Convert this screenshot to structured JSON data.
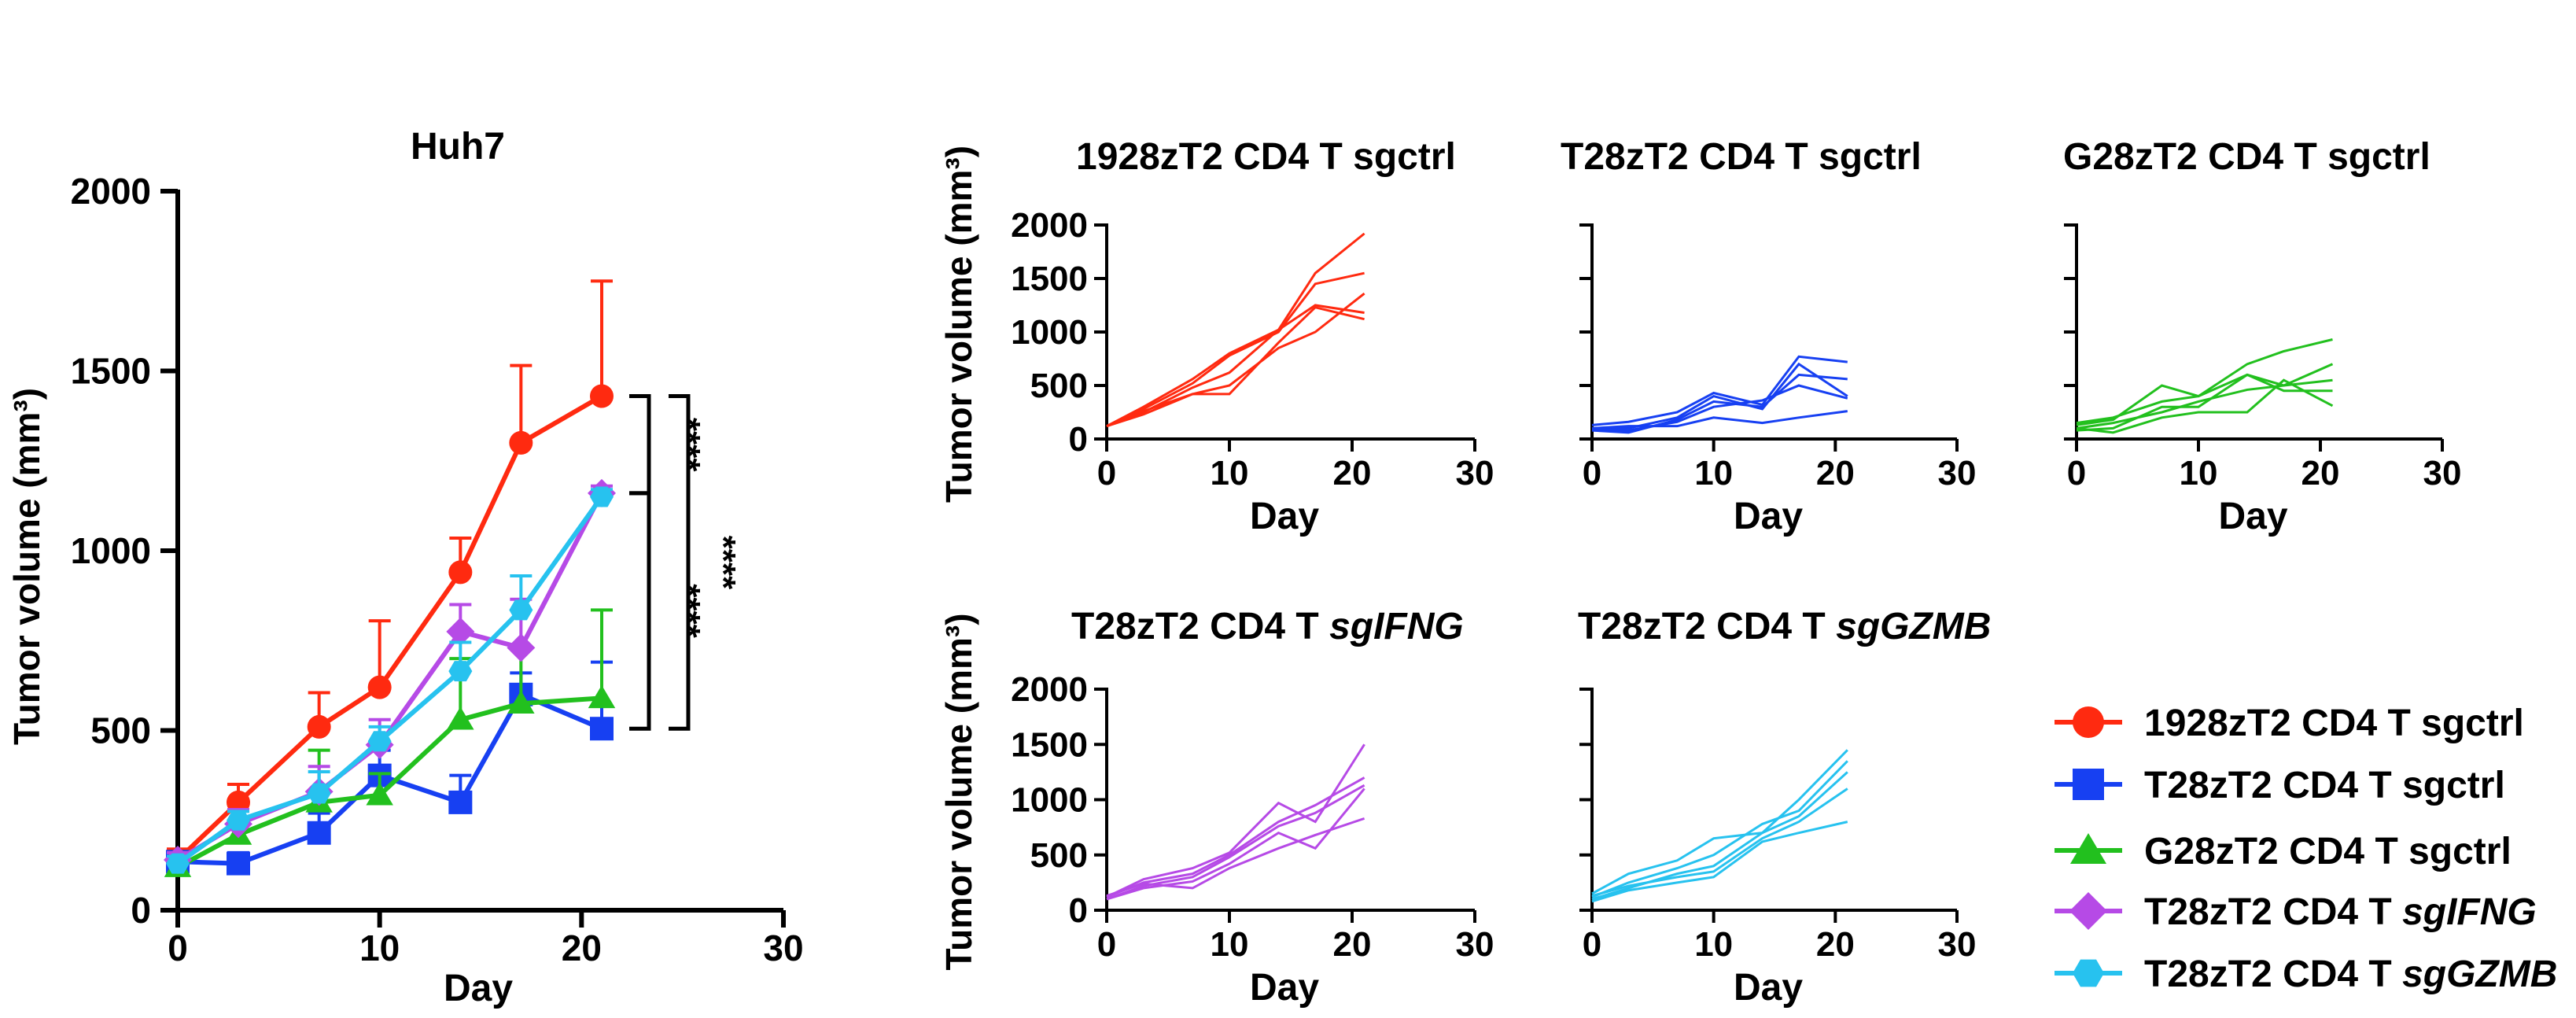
{
  "colors": {
    "sgctrl_1928": "#ff2a10",
    "sgctrl_T28": "#1740f2",
    "sgctrl_G28": "#22c01e",
    "sgIFNG": "#b64ae6",
    "sgGZMB": "#27c2ef",
    "axis": "#000000"
  },
  "legend": [
    {
      "key": "sgctrl_1928",
      "marker": "circle",
      "text": "1928zT2 CD4 T sgctrl",
      "italic": ""
    },
    {
      "key": "sgctrl_T28",
      "marker": "square",
      "text": "T28zT2 CD4 T  sgctrl",
      "italic": ""
    },
    {
      "key": "sgctrl_G28",
      "marker": "triangle",
      "text": "G28zT2 CD4 T  sgctrl",
      "italic": ""
    },
    {
      "key": "sgIFNG",
      "marker": "diamond",
      "text": "T28zT2 CD4 T ",
      "italic": "sgIFNG"
    },
    {
      "key": "sgGZMB",
      "marker": "hexagon",
      "text": "T28zT2 CD4 T ",
      "italic": "sgGZMB"
    }
  ],
  "chart_data": [
    {
      "type": "line",
      "title": "Huh7",
      "xlabel": "Day",
      "ylabel": "Tumor volume (mm³)",
      "xlim": [
        0,
        30
      ],
      "ylim": [
        0,
        2000
      ],
      "xticks": [
        0,
        10,
        20,
        30
      ],
      "yticks": [
        0,
        500,
        1000,
        1500,
        2000
      ],
      "x": [
        0,
        3,
        7,
        10,
        14,
        17,
        21
      ],
      "series": [
        {
          "name": "1928zT2 CD4 T sgctrl",
          "key": "sgctrl_1928",
          "marker": "circle",
          "values": [
            140,
            300,
            510,
            620,
            940,
            1300,
            1430
          ],
          "err": [
            30,
            50,
            95,
            185,
            95,
            215,
            320
          ]
        },
        {
          "name": "T28zT2 CD4 T sgctrl",
          "key": "sgctrl_T28",
          "marker": "square",
          "values": [
            135,
            130,
            215,
            375,
            300,
            600,
            505
          ],
          "err": [
            25,
            30,
            55,
            70,
            75,
            60,
            185
          ]
        },
        {
          "name": "G28zT2 CD4 T sgctrl",
          "key": "sgctrl_G28",
          "marker": "triangle",
          "values": [
            120,
            210,
            300,
            320,
            530,
            575,
            590
          ],
          "err": [
            20,
            35,
            145,
            60,
            170,
            160,
            245
          ]
        },
        {
          "name": "T28zT2 CD4 T sgIFNG",
          "key": "sgIFNG",
          "marker": "diamond",
          "values": [
            140,
            240,
            330,
            460,
            775,
            730,
            1160
          ],
          "err": [
            20,
            40,
            70,
            70,
            75,
            135,
            20
          ]
        },
        {
          "name": "T28zT2 CD4 T sgGZMB",
          "key": "sgGZMB",
          "marker": "hexagon",
          "values": [
            130,
            250,
            325,
            470,
            665,
            835,
            1150
          ],
          "err": [
            20,
            25,
            60,
            40,
            80,
            95,
            20
          ]
        }
      ],
      "significance": [
        {
          "label": "****",
          "between": [
            1430,
            1160
          ]
        },
        {
          "label": "****",
          "between": [
            1160,
            505
          ]
        },
        {
          "label": "****",
          "between": [
            1430,
            505
          ]
        }
      ]
    },
    {
      "type": "line",
      "title": "1928zT2 CD4 T sgctrl",
      "title_italic": "",
      "key": "sgctrl_1928",
      "xlabel": "Day",
      "ylabel": "Tumor volume (mm³)",
      "xlim": [
        0,
        30
      ],
      "ylim": [
        0,
        2000
      ],
      "xticks": [
        0,
        10,
        20,
        30
      ],
      "yticks": [
        0,
        500,
        1000,
        1500,
        2000
      ],
      "show_ylabels": true,
      "x": [
        0,
        3,
        7,
        10,
        14,
        17,
        21
      ],
      "series": [
        [
          120,
          300,
          560,
          800,
          1020,
          1550,
          1920
        ],
        [
          120,
          280,
          520,
          780,
          1000,
          1450,
          1550
        ],
        [
          120,
          250,
          480,
          620,
          1020,
          1250,
          1180
        ],
        [
          120,
          230,
          420,
          500,
          850,
          1000,
          1360
        ],
        [
          120,
          260,
          420,
          420,
          900,
          1230,
          1120
        ]
      ]
    },
    {
      "type": "line",
      "title": "T28zT2 CD4 T sgctrl",
      "title_italic": "",
      "key": "sgctrl_T28",
      "xlabel": "Day",
      "xlim": [
        0,
        30
      ],
      "ylim": [
        0,
        2000
      ],
      "xticks": [
        0,
        10,
        20,
        30
      ],
      "yticks": [
        0,
        500,
        1000,
        1500,
        2000
      ],
      "show_ylabels": false,
      "x": [
        0,
        3,
        7,
        10,
        14,
        17,
        21
      ],
      "series": [
        [
          130,
          160,
          250,
          430,
          320,
          770,
          720
        ],
        [
          100,
          100,
          200,
          400,
          280,
          700,
          400
        ],
        [
          80,
          60,
          180,
          350,
          300,
          600,
          560
        ],
        [
          90,
          80,
          160,
          300,
          360,
          500,
          380
        ],
        [
          100,
          120,
          120,
          200,
          150,
          200,
          260
        ]
      ]
    },
    {
      "type": "line",
      "title": "G28zT2 CD4 T  sgctrl",
      "title_italic": "",
      "key": "sgctrl_G28",
      "xlabel": "Day",
      "xlim": [
        0,
        30
      ],
      "ylim": [
        0,
        2000
      ],
      "xticks": [
        0,
        10,
        20,
        30
      ],
      "yticks": [
        0,
        500,
        1000,
        1500,
        2000
      ],
      "show_ylabels": false,
      "x": [
        0,
        3,
        7,
        10,
        14,
        17,
        21
      ],
      "series": [
        [
          150,
          200,
          350,
          400,
          700,
          820,
          930
        ],
        [
          130,
          180,
          500,
          400,
          600,
          500,
          700
        ],
        [
          100,
          150,
          250,
          350,
          460,
          500,
          550
        ],
        [
          80,
          100,
          300,
          300,
          600,
          450,
          450
        ],
        [
          100,
          60,
          200,
          250,
          250,
          550,
          310
        ]
      ]
    },
    {
      "type": "line",
      "title": "T28zT2 CD4 T ",
      "title_italic": "sgIFNG",
      "key": "sgIFNG",
      "xlabel": "Day",
      "ylabel": "Tumor volume (mm³)",
      "xlim": [
        0,
        30
      ],
      "ylim": [
        0,
        2000
      ],
      "xticks": [
        0,
        10,
        20,
        30
      ],
      "yticks": [
        0,
        500,
        1000,
        1500,
        2000
      ],
      "show_ylabels": true,
      "x": [
        0,
        3,
        7,
        10,
        14,
        17,
        21
      ],
      "series": [
        [
          120,
          280,
          380,
          520,
          970,
          800,
          1500
        ],
        [
          120,
          250,
          330,
          500,
          800,
          950,
          1200
        ],
        [
          100,
          220,
          300,
          480,
          760,
          880,
          1130
        ],
        [
          100,
          200,
          260,
          420,
          700,
          560,
          1100
        ],
        [
          130,
          240,
          200,
          380,
          560,
          680,
          830
        ]
      ]
    },
    {
      "type": "line",
      "title": "T28zT2 CD4 T ",
      "title_italic": "sgGZMB",
      "key": "sgGZMB",
      "xlabel": "Day",
      "xlim": [
        0,
        30
      ],
      "ylim": [
        0,
        2000
      ],
      "xticks": [
        0,
        10,
        20,
        30
      ],
      "yticks": [
        0,
        500,
        1000,
        1500,
        2000
      ],
      "show_ylabels": false,
      "x": [
        0,
        3,
        7,
        10,
        14,
        17,
        21
      ],
      "series": [
        [
          150,
          330,
          450,
          650,
          700,
          1000,
          1450
        ],
        [
          120,
          250,
          380,
          500,
          780,
          900,
          1350
        ],
        [
          100,
          200,
          330,
          400,
          700,
          850,
          1250
        ],
        [
          130,
          220,
          300,
          350,
          650,
          800,
          1100
        ],
        [
          80,
          180,
          250,
          300,
          620,
          700,
          800
        ]
      ]
    }
  ]
}
